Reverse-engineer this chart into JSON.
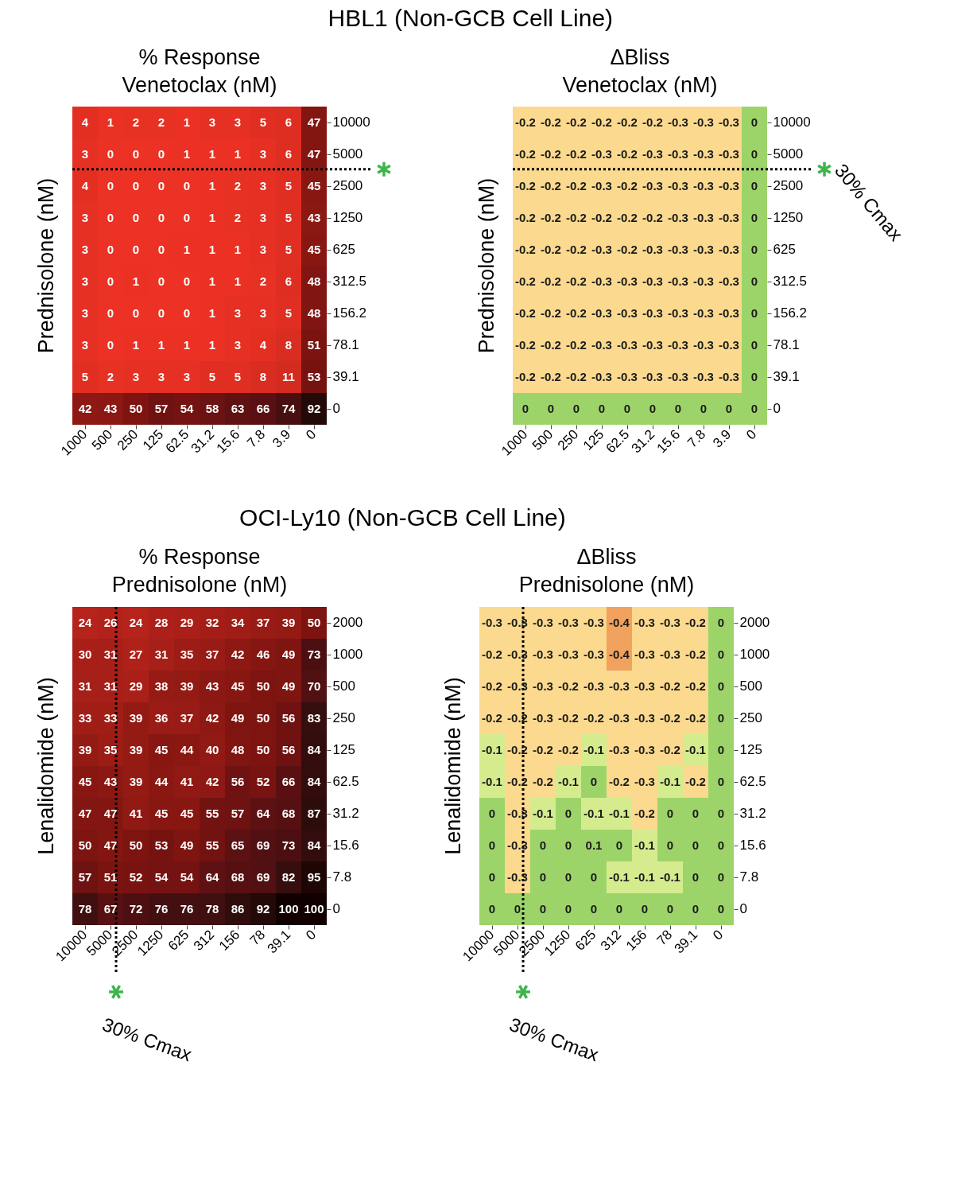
{
  "chart_data": [
    {
      "type": "heatmap",
      "title": "% Response",
      "xlabel": "Venetoclax (nM)",
      "ylabel": "Prednisolone (nM)",
      "annotations": [
        "HBL1 (Non-GCB Cell Line)"
      ],
      "data_labels": true,
      "categories": [
        "1000",
        "500",
        "250",
        "125",
        "62.5",
        "31.2",
        "15.6",
        "7.8",
        "3.9",
        "0"
      ],
      "y_categories": [
        "10000",
        "5000",
        "2500",
        "1250",
        "625",
        "312.5",
        "156.2",
        "78.1",
        "39.1",
        "0"
      ],
      "cells": [
        [
          4,
          1,
          2,
          2,
          1,
          3,
          3,
          5,
          6,
          47
        ],
        [
          3,
          0,
          0,
          0,
          1,
          1,
          1,
          3,
          6,
          47
        ],
        [
          4,
          0,
          0,
          0,
          0,
          1,
          2,
          3,
          5,
          45
        ],
        [
          3,
          0,
          0,
          0,
          0,
          1,
          2,
          3,
          5,
          43
        ],
        [
          3,
          0,
          0,
          0,
          1,
          1,
          1,
          3,
          5,
          45
        ],
        [
          3,
          0,
          1,
          0,
          0,
          1,
          1,
          2,
          6,
          48
        ],
        [
          3,
          0,
          0,
          0,
          0,
          1,
          3,
          3,
          5,
          48
        ],
        [
          3,
          0,
          1,
          1,
          1,
          1,
          3,
          4,
          8,
          51
        ],
        [
          5,
          2,
          3,
          3,
          3,
          5,
          5,
          8,
          11,
          53
        ],
        [
          42,
          43,
          50,
          57,
          54,
          58,
          63,
          66,
          74,
          92
        ]
      ],
      "ref_lines": [
        {
          "axis": "y",
          "value": "5000",
          "line_style": "dotted"
        }
      ]
    },
    {
      "type": "heatmap",
      "title": "ΔBliss",
      "xlabel": "Venetoclax (nM)",
      "ylabel": "Prednisolone (nM)",
      "data_labels": true,
      "categories": [
        "1000",
        "500",
        "250",
        "125",
        "62.5",
        "31.2",
        "15.6",
        "7.8",
        "3.9",
        "0"
      ],
      "y_categories": [
        "10000",
        "5000",
        "2500",
        "1250",
        "625",
        "312.5",
        "156.2",
        "78.1",
        "39.1",
        "0"
      ],
      "cells": [
        [
          -0.2,
          -0.2,
          -0.2,
          -0.2,
          -0.2,
          -0.2,
          -0.3,
          -0.3,
          -0.3,
          0
        ],
        [
          -0.2,
          -0.2,
          -0.2,
          -0.3,
          -0.2,
          -0.3,
          -0.3,
          -0.3,
          -0.3,
          0
        ],
        [
          -0.2,
          -0.2,
          -0.2,
          -0.3,
          -0.2,
          -0.3,
          -0.3,
          -0.3,
          -0.3,
          0
        ],
        [
          -0.2,
          -0.2,
          -0.2,
          -0.2,
          -0.2,
          -0.2,
          -0.3,
          -0.3,
          -0.3,
          0
        ],
        [
          -0.2,
          -0.2,
          -0.2,
          -0.3,
          -0.2,
          -0.3,
          -0.3,
          -0.3,
          -0.3,
          0
        ],
        [
          -0.2,
          -0.2,
          -0.2,
          -0.3,
          -0.3,
          -0.3,
          -0.3,
          -0.3,
          -0.3,
          0
        ],
        [
          -0.2,
          -0.2,
          -0.2,
          -0.3,
          -0.3,
          -0.3,
          -0.3,
          -0.3,
          -0.3,
          0
        ],
        [
          -0.2,
          -0.2,
          -0.2,
          -0.3,
          -0.3,
          -0.3,
          -0.3,
          -0.3,
          -0.3,
          0
        ],
        [
          -0.2,
          -0.2,
          -0.2,
          -0.3,
          -0.3,
          -0.3,
          -0.3,
          -0.3,
          -0.3,
          0
        ],
        [
          0,
          0,
          0,
          0,
          0,
          0,
          0,
          0,
          0,
          0
        ]
      ],
      "ref_lines": [
        {
          "axis": "y",
          "value": "5000",
          "label": "30% Cmax",
          "line_style": "dotted"
        }
      ]
    },
    {
      "type": "heatmap",
      "title": "% Response",
      "xlabel": "Prednisolone (nM)",
      "ylabel": "Lenalidomide (nM)",
      "annotations": [
        "OCI-Ly10 (Non-GCB Cell Line)"
      ],
      "data_labels": true,
      "categories": [
        "10000",
        "5000",
        "2500",
        "1250",
        "625",
        "312",
        "156",
        "78",
        "39.1",
        "0"
      ],
      "y_categories": [
        "2000",
        "1000",
        "500",
        "250",
        "125",
        "62.5",
        "31.2",
        "15.6",
        "7.8",
        "0"
      ],
      "cells": [
        [
          24,
          26,
          24,
          28,
          29,
          32,
          34,
          37,
          39,
          50
        ],
        [
          30,
          31,
          27,
          31,
          35,
          37,
          42,
          46,
          49,
          73
        ],
        [
          31,
          31,
          29,
          38,
          39,
          43,
          45,
          50,
          49,
          70
        ],
        [
          33,
          33,
          39,
          36,
          37,
          42,
          49,
          50,
          56,
          83
        ],
        [
          39,
          35,
          39,
          45,
          44,
          40,
          48,
          50,
          56,
          84
        ],
        [
          45,
          43,
          39,
          44,
          41,
          42,
          56,
          52,
          66,
          84
        ],
        [
          47,
          47,
          41,
          45,
          45,
          55,
          57,
          64,
          68,
          87
        ],
        [
          50,
          47,
          50,
          53,
          49,
          55,
          65,
          69,
          73,
          84
        ],
        [
          57,
          51,
          52,
          54,
          54,
          64,
          68,
          69,
          82,
          95
        ],
        [
          78,
          67,
          72,
          76,
          76,
          78,
          86,
          92,
          100,
          100
        ]
      ],
      "ref_lines": [
        {
          "axis": "x",
          "value": "5000",
          "label": "30% Cmax",
          "line_style": "dotted"
        }
      ]
    },
    {
      "type": "heatmap",
      "title": "ΔBliss",
      "xlabel": "Prednisolone (nM)",
      "ylabel": "Lenalidomide (nM)",
      "data_labels": true,
      "categories": [
        "10000",
        "5000",
        "2500",
        "1250",
        "625",
        "312",
        "156",
        "78",
        "39.1",
        "0"
      ],
      "y_categories": [
        "2000",
        "1000",
        "500",
        "250",
        "125",
        "62.5",
        "31.2",
        "15.6",
        "7.8",
        "0"
      ],
      "cells": [
        [
          -0.3,
          -0.3,
          -0.3,
          -0.3,
          -0.3,
          -0.4,
          -0.3,
          -0.3,
          -0.2,
          0
        ],
        [
          -0.2,
          -0.3,
          -0.3,
          -0.3,
          -0.3,
          -0.4,
          -0.3,
          -0.3,
          -0.2,
          0
        ],
        [
          -0.2,
          -0.3,
          -0.3,
          -0.2,
          -0.3,
          -0.3,
          -0.3,
          -0.2,
          -0.2,
          0
        ],
        [
          -0.2,
          -0.2,
          -0.3,
          -0.2,
          -0.2,
          -0.3,
          -0.3,
          -0.2,
          -0.2,
          0
        ],
        [
          -0.1,
          -0.2,
          -0.2,
          -0.2,
          -0.1,
          -0.3,
          -0.3,
          -0.2,
          -0.1,
          0
        ],
        [
          -0.1,
          -0.2,
          -0.2,
          -0.1,
          0,
          -0.2,
          -0.3,
          -0.1,
          -0.2,
          0
        ],
        [
          0,
          -0.3,
          -0.1,
          0,
          -0.1,
          -0.1,
          -0.2,
          0,
          0,
          0
        ],
        [
          0,
          -0.3,
          0,
          0,
          0.1,
          0,
          -0.1,
          0,
          0,
          0
        ],
        [
          0,
          -0.3,
          0,
          0,
          0,
          -0.1,
          -0.1,
          -0.1,
          0,
          0
        ],
        [
          0,
          0,
          0,
          0,
          0,
          0,
          0,
          0,
          0,
          0
        ]
      ],
      "ref_lines": [
        {
          "axis": "x",
          "value": "5000",
          "label": "30% Cmax",
          "line_style": "dotted"
        }
      ]
    }
  ]
}
